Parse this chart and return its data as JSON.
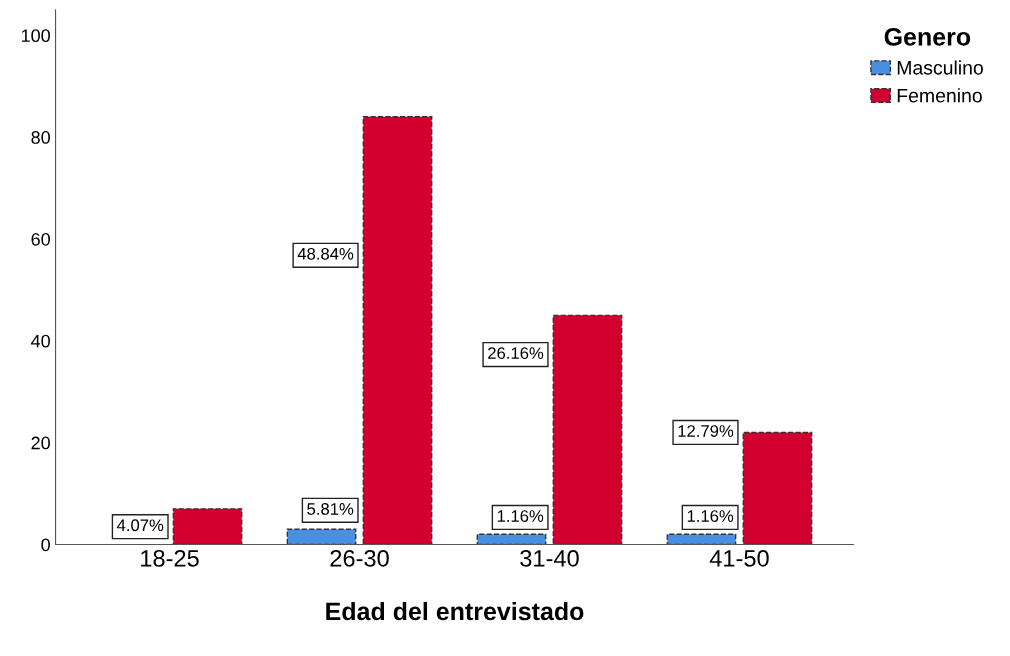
{
  "chart_data": {
    "type": "bar",
    "xlabel": "Edad del entrevistado",
    "legend_title": "Genero",
    "categories": [
      "18-25",
      "26-30",
      "31-40",
      "41-50"
    ],
    "series": [
      {
        "name": "Masculino",
        "color": "#4a90e2",
        "values": [
          null,
          3,
          2,
          2
        ]
      },
      {
        "name": "Femenino",
        "color": "#d2002e",
        "values": [
          7,
          84,
          45,
          22
        ]
      }
    ],
    "annotations": [
      {
        "text": "4.07%",
        "x": "18-25",
        "y": 3.5
      },
      {
        "text": "5.81%",
        "x": "26-30",
        "y": 6.7
      },
      {
        "text": "48.84%",
        "x": "26-30",
        "y": 56.8
      },
      {
        "text": "1.16%",
        "x": "31-40",
        "y": 5.3
      },
      {
        "text": "26.16%",
        "x": "31-40",
        "y": 37.3
      },
      {
        "text": "1.16%",
        "x": "41-50",
        "y": 5.3
      },
      {
        "text": "12.79%",
        "x": "41-50",
        "y": 22
      }
    ],
    "ylim": [
      0,
      105
    ],
    "yticks": [
      0,
      20,
      40,
      60,
      80,
      100
    ],
    "grid": false,
    "legend": "top right",
    "line_style": "dashed"
  }
}
